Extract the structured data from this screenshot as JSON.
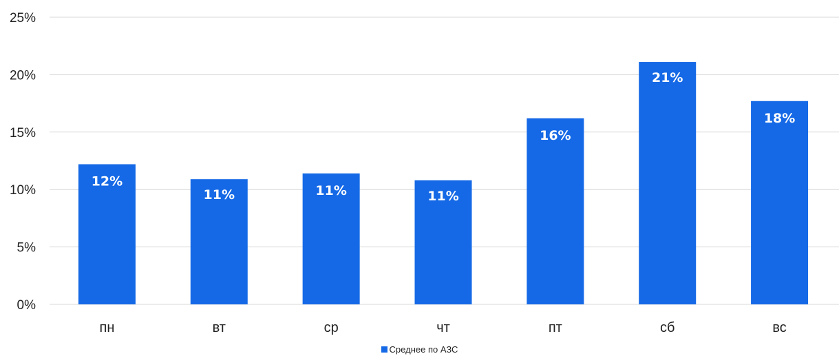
{
  "chart_data": {
    "type": "bar",
    "categories": [
      "пн",
      "вт",
      "ср",
      "чт",
      "пт",
      "сб",
      "вс"
    ],
    "series": [
      {
        "name": "Среднее по АЗС",
        "values": [
          12.2,
          10.9,
          11.4,
          10.8,
          16.2,
          21.1,
          17.7
        ],
        "labels": [
          "12%",
          "11%",
          "11%",
          "11%",
          "16%",
          "21%",
          "18%"
        ],
        "color": "#1569e6"
      }
    ],
    "y_ticks": [
      "0%",
      "5%",
      "10%",
      "15%",
      "20%",
      "25%"
    ],
    "ylim": [
      0,
      25
    ],
    "grid": true,
    "legend_position": "bottom",
    "gridline_color": "#d9d9d9"
  }
}
